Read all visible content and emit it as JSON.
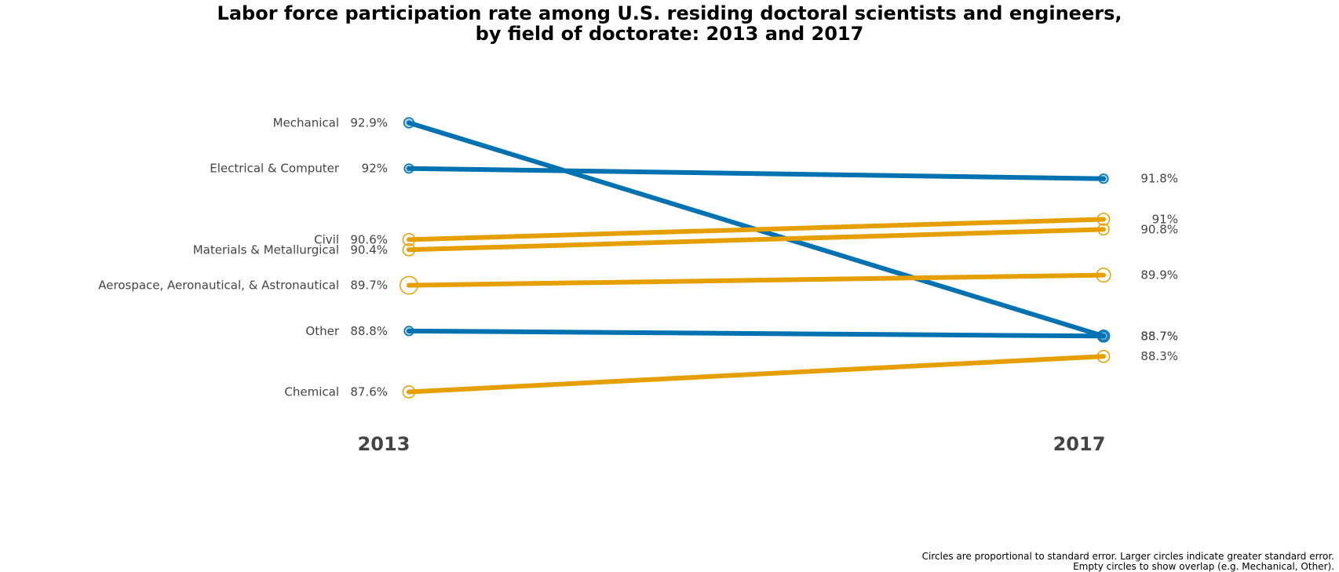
{
  "chart_data": {
    "type": "line",
    "title_lines": [
      "Labor force participation rate among U.S. residing doctoral scientists and engineers,",
      "by field of doctorate: 2013 and 2017"
    ],
    "x": [
      "2013",
      "2017"
    ],
    "series": [
      {
        "name": "Mechanical",
        "values": [
          92.9,
          88.7
        ],
        "labels": [
          "92.9%",
          "88.7%"
        ],
        "color": "#0072B2",
        "filled": true,
        "se": [
          0.4,
          0.6
        ]
      },
      {
        "name": "Electrical & Computer",
        "values": [
          92.0,
          91.8
        ],
        "labels": [
          "92%",
          "91.8%"
        ],
        "color": "#0072B2",
        "filled": true,
        "se": [
          0.3,
          0.3
        ]
      },
      {
        "name": "Civil",
        "values": [
          90.6,
          91.0
        ],
        "labels": [
          "90.6%",
          "91%"
        ],
        "color": "#E69F00",
        "filled": false,
        "se": [
          0.6,
          0.6
        ]
      },
      {
        "name": "Materials & Metallurgical",
        "values": [
          90.4,
          90.8
        ],
        "labels": [
          "90.4%",
          "90.8%"
        ],
        "color": "#E69F00",
        "filled": false,
        "se": [
          0.6,
          0.5
        ]
      },
      {
        "name": "Aerospace, Aeronautical, & Astronautical",
        "values": [
          89.7,
          89.9
        ],
        "labels": [
          "89.7%",
          "89.9%"
        ],
        "color": "#E69F00",
        "filled": false,
        "se": [
          1.2,
          0.8
        ]
      },
      {
        "name": "Other",
        "values": [
          88.8,
          88.7
        ],
        "labels": [
          "88.8%",
          "88.7%"
        ],
        "color": "#0072B2",
        "filled": true,
        "se": [
          0.3,
          0.3
        ]
      },
      {
        "name": "Chemical",
        "values": [
          87.6,
          88.3
        ],
        "labels": [
          "87.6%",
          "88.3%"
        ],
        "color": "#E69F00",
        "filled": false,
        "se": [
          0.6,
          0.6
        ]
      }
    ],
    "ylim": [
      87.6,
      92.9
    ],
    "grid": false,
    "legend": "none",
    "footnote_lines": [
      "Circles are proportional to standard error. Larger circles indicate greater standard error.",
      "Empty circles to show overlap (e.g. Mechanical, Other)."
    ]
  }
}
